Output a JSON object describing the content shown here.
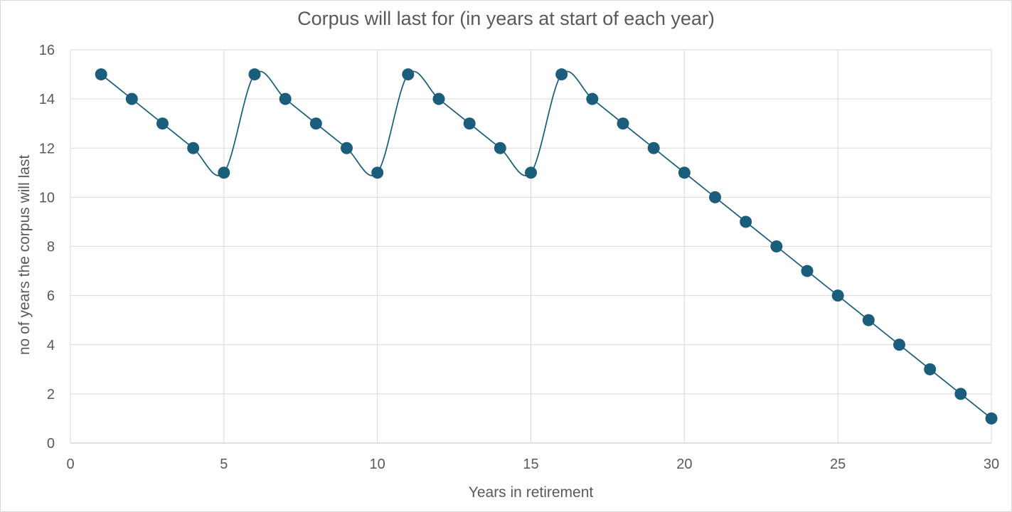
{
  "chart_data": {
    "type": "scatter",
    "title": "Corpus will last for (in years at start of each year)",
    "xlabel": "Years in retirement",
    "ylabel": "no of years the corpus will last",
    "xlim": [
      0,
      30
    ],
    "ylim": [
      0,
      16
    ],
    "x_ticks": [
      0,
      5,
      10,
      15,
      20,
      25,
      30
    ],
    "y_ticks": [
      0,
      2,
      4,
      6,
      8,
      10,
      12,
      14,
      16
    ],
    "grid": true,
    "legend": "none",
    "smooth_lines": true,
    "series": [
      {
        "color": "#1b5e7b",
        "x": [
          1,
          2,
          3,
          4,
          5,
          6,
          7,
          8,
          9,
          10,
          11,
          12,
          13,
          14,
          15,
          16,
          17,
          18,
          19,
          20,
          21,
          22,
          23,
          24,
          25,
          26,
          27,
          28,
          29,
          30
        ],
        "y": [
          15,
          14,
          13,
          12,
          11,
          15,
          14,
          13,
          12,
          11,
          15,
          14,
          13,
          12,
          11,
          15,
          14,
          13,
          12,
          11,
          10,
          9,
          8,
          7,
          6,
          5,
          4,
          3,
          2,
          1
        ]
      }
    ]
  }
}
